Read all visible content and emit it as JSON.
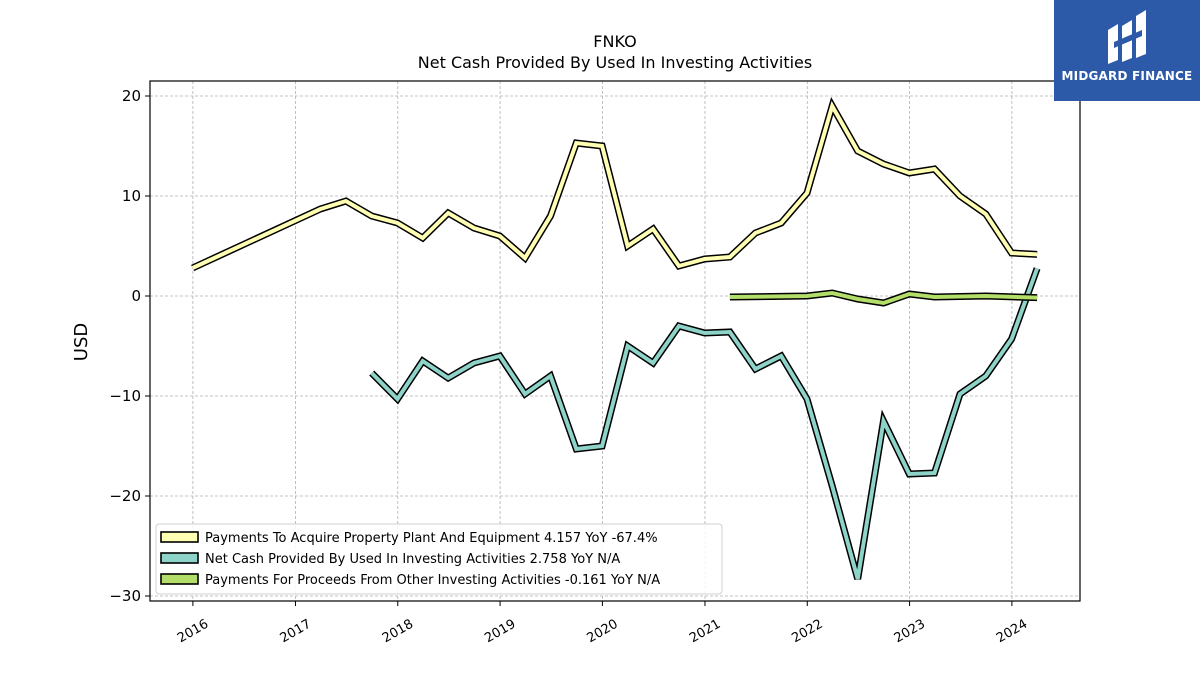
{
  "chart_data": {
    "type": "line",
    "title": "FNKO",
    "subtitle": "Net Cash Provided By Used In Investing Activities",
    "ylabel": "USD",
    "xlabel": "",
    "ylim": [
      -30.5,
      21.5
    ],
    "xlim": [
      "2015-08-01",
      "2024-08-31"
    ],
    "yticks": [
      20,
      10,
      0,
      -10,
      -20,
      -30
    ],
    "ytick_labels": [
      "20",
      "10",
      "0",
      "−10",
      "−20",
      "−30"
    ],
    "xticks": [
      "2016-01-01",
      "2017-01-01",
      "2018-01-01",
      "2019-01-01",
      "2020-01-01",
      "2021-01-01",
      "2022-01-01",
      "2023-01-01",
      "2024-01-01"
    ],
    "xtick_labels": [
      "2016",
      "2017",
      "2018",
      "2019",
      "2020",
      "2021",
      "2022",
      "2023",
      "2024"
    ],
    "grid": true,
    "legend_position": "lower-left",
    "series": [
      {
        "name": "Payments To Acquire Property Plant And Equipment",
        "legend_label": "Payments To Acquire Property Plant And Equipment  4.157 YoY -67.4%",
        "color": "#ffffb3",
        "points": [
          [
            "2015-12-31",
            2.8
          ],
          [
            "2017-03-31",
            8.7
          ],
          [
            "2017-06-30",
            9.5
          ],
          [
            "2017-09-30",
            8.0
          ],
          [
            "2017-12-31",
            7.3
          ],
          [
            "2018-03-31",
            5.8
          ],
          [
            "2018-06-30",
            8.3
          ],
          [
            "2018-09-30",
            6.8
          ],
          [
            "2018-12-31",
            6.0
          ],
          [
            "2019-03-31",
            3.8
          ],
          [
            "2019-06-30",
            8.0
          ],
          [
            "2019-09-30",
            15.3
          ],
          [
            "2019-12-31",
            15.0
          ],
          [
            "2020-03-31",
            5.0
          ],
          [
            "2020-06-30",
            6.7
          ],
          [
            "2020-09-30",
            3.0
          ],
          [
            "2020-12-31",
            3.7
          ],
          [
            "2021-03-31",
            3.9
          ],
          [
            "2021-06-30",
            6.3
          ],
          [
            "2021-09-30",
            7.3
          ],
          [
            "2021-12-31",
            10.3
          ],
          [
            "2022-03-31",
            19.0
          ],
          [
            "2022-06-30",
            14.5
          ],
          [
            "2022-09-30",
            13.2
          ],
          [
            "2022-12-31",
            12.3
          ],
          [
            "2023-03-31",
            12.7
          ],
          [
            "2023-06-30",
            10.0
          ],
          [
            "2023-09-30",
            8.2
          ],
          [
            "2023-12-31",
            4.3
          ],
          [
            "2024-03-31",
            4.157
          ]
        ]
      },
      {
        "name": "Net Cash Provided By Used In Investing Activities",
        "legend_label": "Net Cash Provided By Used In Investing Activities  2.758 YoY N/A",
        "color": "#8dd3c7",
        "points": [
          [
            "2017-09-30",
            -7.7
          ],
          [
            "2017-12-31",
            -10.3
          ],
          [
            "2018-03-31",
            -6.5
          ],
          [
            "2018-06-30",
            -8.2
          ],
          [
            "2018-09-30",
            -6.7
          ],
          [
            "2018-12-31",
            -6.0
          ],
          [
            "2019-03-31",
            -9.8
          ],
          [
            "2019-06-30",
            -8.0
          ],
          [
            "2019-09-30",
            -15.3
          ],
          [
            "2019-12-31",
            -15.0
          ],
          [
            "2020-03-31",
            -5.0
          ],
          [
            "2020-06-30",
            -6.7
          ],
          [
            "2020-09-30",
            -3.0
          ],
          [
            "2020-12-31",
            -3.7
          ],
          [
            "2021-03-31",
            -3.6
          ],
          [
            "2021-06-30",
            -7.3
          ],
          [
            "2021-09-30",
            -6.0
          ],
          [
            "2021-12-31",
            -10.3
          ],
          [
            "2022-03-31",
            -19.0
          ],
          [
            "2022-06-30",
            -28.3
          ],
          [
            "2022-09-30",
            -12.5
          ],
          [
            "2022-12-31",
            -17.8
          ],
          [
            "2023-03-31",
            -17.7
          ],
          [
            "2023-06-30",
            -9.8
          ],
          [
            "2023-09-30",
            -8.0
          ],
          [
            "2023-12-31",
            -4.3
          ],
          [
            "2024-03-31",
            2.758
          ]
        ]
      },
      {
        "name": "Payments For Proceeds From Other Investing Activities",
        "legend_label": "Payments For Proceeds From Other Investing Activities  -0.161 YoY N/A",
        "color": "#b3de69",
        "points": [
          [
            "2021-03-31",
            -0.1
          ],
          [
            "2021-12-31",
            0.0
          ],
          [
            "2022-03-31",
            0.3
          ],
          [
            "2022-06-30",
            -0.3
          ],
          [
            "2022-09-30",
            -0.7
          ],
          [
            "2022-12-31",
            0.2
          ],
          [
            "2023-03-31",
            -0.1
          ],
          [
            "2023-09-30",
            0.0
          ],
          [
            "2024-03-31",
            -0.161
          ]
        ]
      }
    ]
  },
  "branding": {
    "logo_text": "MIDGARD FINANCE",
    "logo_color": "#2c5aa8"
  }
}
